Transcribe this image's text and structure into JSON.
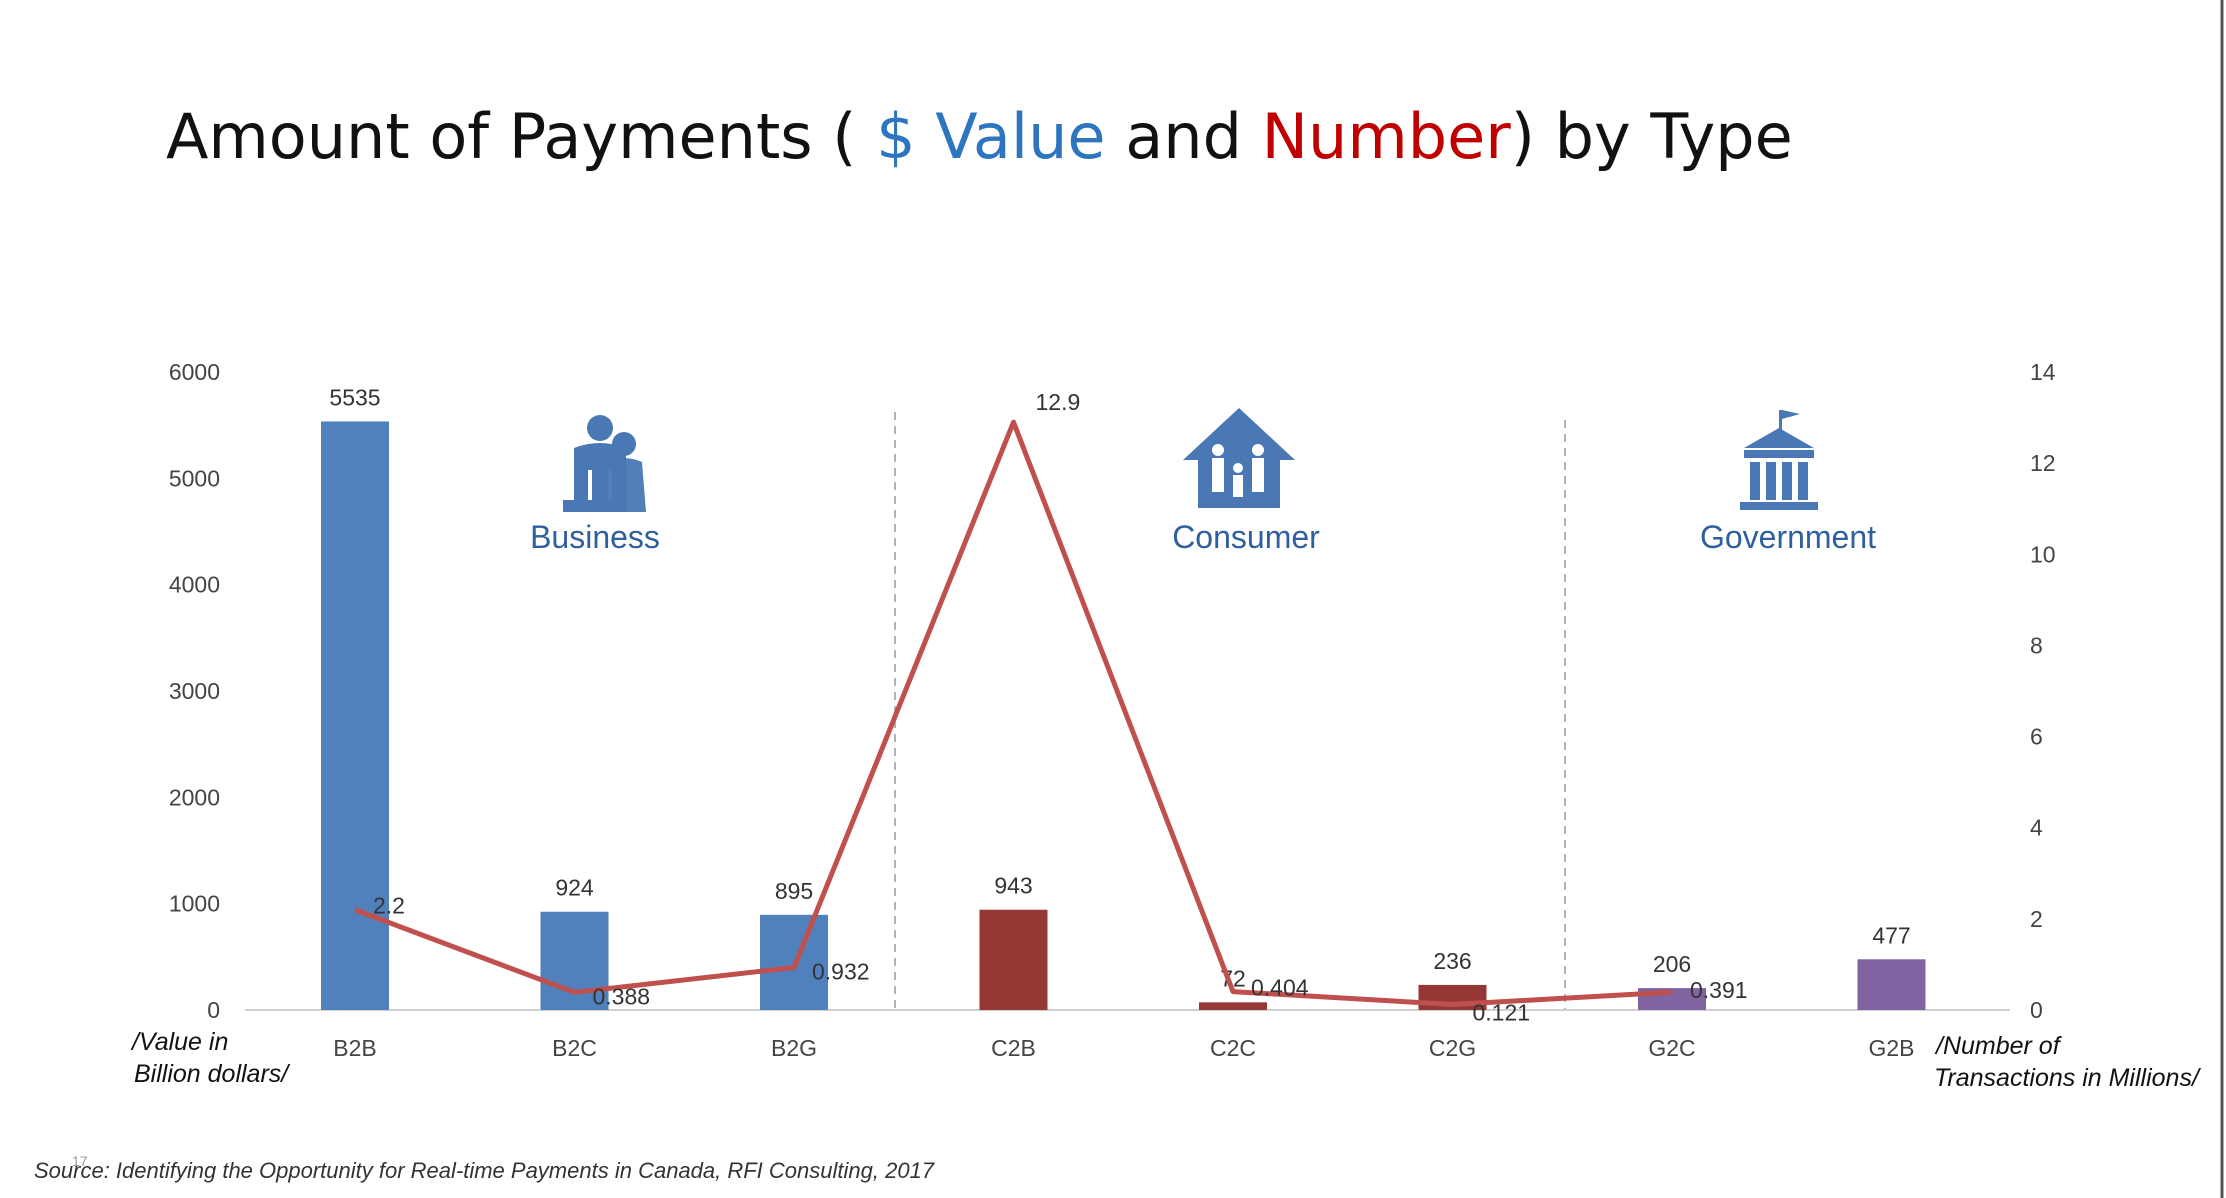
{
  "title": {
    "part1": "Amount of Payments ( ",
    "value_word": "$ Value",
    "part2": " and ",
    "number_word": "Number",
    "part3": ") by Type",
    "value_color": "#2e75c0",
    "number_color": "#c00000"
  },
  "groups": [
    {
      "label": "Business",
      "icon": "business-people-icon"
    },
    {
      "label": "Consumer",
      "icon": "family-house-icon"
    },
    {
      "label": "Government",
      "icon": "government-building-icon"
    }
  ],
  "left_axis_note": [
    "/Value in",
    "Billion dollars/"
  ],
  "right_axis_note": [
    "/Number of",
    "Transactions in Millions/"
  ],
  "source": "Source: Identifying the Opportunity for Real-time Payments in Canada, RFI Consulting, 2017",
  "page_number": "17",
  "chart_data": {
    "type": "bar",
    "categories": [
      "B2B",
      "B2C",
      "B2G",
      "C2B",
      "C2C",
      "C2G",
      "G2C",
      "G2B"
    ],
    "series": [
      {
        "type": "bar",
        "axis": "left",
        "values": [
          5535,
          924,
          895,
          943,
          72,
          236,
          206,
          477
        ],
        "labels": [
          "5535",
          "924",
          "895",
          "943",
          "72",
          "236",
          "206",
          "477"
        ],
        "colors": [
          "#5181bd",
          "#5181bd",
          "#5181bd",
          "#953735",
          "#953735",
          "#953735",
          "#8064a2",
          "#8064a2"
        ]
      },
      {
        "type": "line",
        "axis": "right",
        "values": [
          2.2,
          0.388,
          0.932,
          12.9,
          0.404,
          0.121,
          0.391,
          null
        ],
        "labels": [
          "2.2",
          "0.388",
          "0.932",
          "12.9",
          "0.404",
          "0.121",
          "0.391",
          ""
        ],
        "color": "#c0504d"
      }
    ],
    "y_left": {
      "ticks": [
        "0",
        "1000",
        "2000",
        "3000",
        "4000",
        "5000",
        "6000"
      ],
      "range": [
        0,
        6000
      ]
    },
    "y_right": {
      "ticks": [
        "0",
        "2",
        "4",
        "6",
        "8",
        "10",
        "12",
        "14"
      ],
      "range": [
        0,
        14
      ]
    },
    "grid": false,
    "legend": "none"
  }
}
